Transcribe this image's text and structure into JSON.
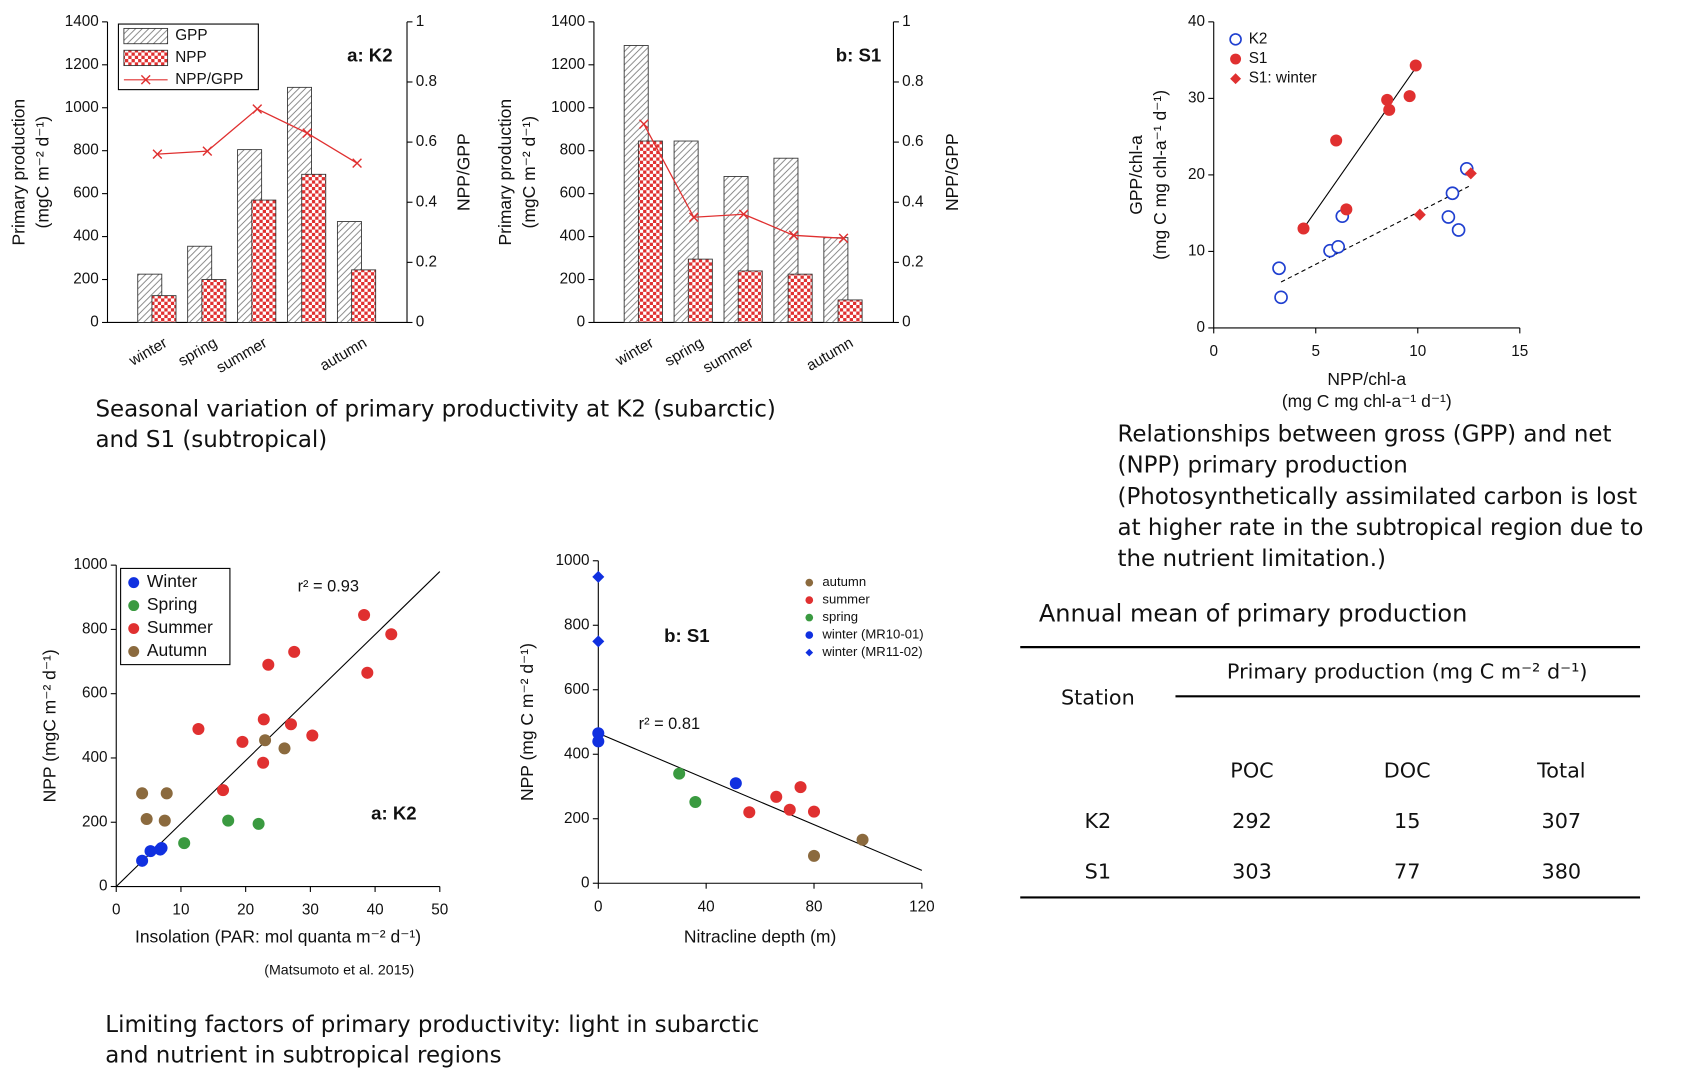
{
  "chart_data": [
    {
      "type": "bar",
      "categories": [
        "winter",
        "spring",
        "summer",
        null,
        "autumn"
      ],
      "series": [
        {
          "name": "GPP",
          "color": "#7a7a7a",
          "pattern": "hatch",
          "values": [
            225,
            355,
            805,
            1095,
            470
          ]
        },
        {
          "name": "NPP",
          "color": "#e03030",
          "pattern": "checker",
          "values": [
            125,
            200,
            570,
            690,
            245
          ]
        },
        {
          "name": "NPP/GPP",
          "color": "#e03030",
          "axis": "y2",
          "marker": "x",
          "values": [
            0.56,
            0.57,
            0.71,
            0.63,
            0.53
          ]
        }
      ],
      "ylabel": [
        "Primary production",
        "(mgC m⁻² d⁻¹)"
      ],
      "y2label": [
        "NPP/GPP"
      ],
      "ylim": [
        0,
        1400
      ],
      "yticks": [
        0,
        200,
        400,
        600,
        800,
        1000,
        1200,
        1400
      ],
      "y2lim": [
        0,
        1
      ],
      "y2ticks": [
        0,
        0.2,
        0.4,
        0.6,
        0.8,
        1
      ],
      "annotations": [
        "a: K2"
      ],
      "legend": "upper left"
    },
    {
      "type": "bar",
      "categories": [
        "winter",
        "spring",
        "summer",
        null,
        "autumn"
      ],
      "series": [
        {
          "name": "GPP",
          "color": "#7a7a7a",
          "pattern": "hatch",
          "values": [
            1290,
            845,
            680,
            765,
            395
          ]
        },
        {
          "name": "NPP",
          "color": "#e03030",
          "pattern": "checker",
          "values": [
            845,
            295,
            240,
            225,
            105
          ]
        },
        {
          "name": "NPP/GPP",
          "color": "#e03030",
          "axis": "y2",
          "marker": "x",
          "values": [
            0.66,
            0.35,
            0.36,
            0.29,
            0.28
          ]
        }
      ],
      "ylabel": [
        "Primary production",
        "(mgC m⁻² d⁻¹)"
      ],
      "y2label": [
        "NPP/GPP"
      ],
      "ylim": [
        0,
        1400
      ],
      "yticks": [
        0,
        200,
        400,
        600,
        800,
        1000,
        1200,
        1400
      ],
      "y2lim": [
        0,
        1
      ],
      "y2ticks": [
        0,
        0.2,
        0.4,
        0.6,
        0.8,
        1
      ],
      "annotations": [
        "b: S1"
      ],
      "legend": "none"
    },
    {
      "type": "scatter",
      "series": [
        {
          "name": "K2",
          "color": "#2040d0",
          "marker": "open-circle",
          "x": [
            3.2,
            3.3,
            5.7,
            6.1,
            6.3,
            11.5,
            11.7,
            12.0,
            12.4
          ],
          "values": [
            7.8,
            4.0,
            10.1,
            10.6,
            14.6,
            14.5,
            17.6,
            12.8,
            20.8
          ]
        },
        {
          "name": "S1",
          "color": "#e03030",
          "marker": "circle",
          "x": [
            4.4,
            6.0,
            6.5,
            8.5,
            8.6,
            9.6,
            9.9
          ],
          "values": [
            13.0,
            24.5,
            15.5,
            29.8,
            28.5,
            30.3,
            34.3
          ]
        },
        {
          "name": "S1: winter",
          "color": "#e03030",
          "marker": "diamond",
          "x": [
            10.1,
            12.6
          ],
          "values": [
            14.8,
            20.2
          ]
        }
      ],
      "trend_lines": [
        {
          "x": [
            4.4,
            9.9
          ],
          "y": [
            13.0,
            34.0
          ],
          "style": "solid"
        },
        {
          "x": [
            3.3,
            12.5
          ],
          "y": [
            6.0,
            18.5
          ],
          "style": "dashed"
        }
      ],
      "xlabel": [
        "NPP/chl-a",
        "(mg C mg chl-a⁻¹ d⁻¹)"
      ],
      "ylabel": [
        "GPP/chl-a",
        "(mg C mg chl-a⁻¹ d⁻¹)"
      ],
      "xlim": [
        0,
        15
      ],
      "xticks": [
        0,
        5,
        10,
        15
      ],
      "ylim": [
        0,
        40
      ],
      "yticks": [
        0,
        10,
        20,
        30,
        40
      ],
      "annotations": [],
      "legend": "upper left"
    },
    {
      "type": "scatter",
      "series": [
        {
          "name": "Winter",
          "color": "#1030e0",
          "marker": "circle",
          "x": [
            4.0,
            5.3,
            6.8,
            7.0
          ],
          "values": [
            80,
            110,
            115,
            120
          ]
        },
        {
          "name": "Spring",
          "color": "#3a9a40",
          "marker": "circle",
          "x": [
            10.5,
            17.3,
            22.0
          ],
          "values": [
            135,
            205,
            195
          ]
        },
        {
          "name": "Summer",
          "color": "#e03030",
          "marker": "circle",
          "x": [
            12.7,
            16.5,
            19.5,
            22.7,
            22.8,
            23.5,
            27.5,
            27.0,
            30.3,
            38.3,
            38.8,
            42.5
          ],
          "values": [
            490,
            300,
            450,
            385,
            520,
            690,
            730,
            505,
            470,
            845,
            665,
            785
          ]
        },
        {
          "name": "Autumn",
          "color": "#8b6a3e",
          "marker": "circle",
          "x": [
            4.0,
            4.7,
            7.5,
            7.8,
            23.0,
            26.0
          ],
          "values": [
            290,
            210,
            205,
            290,
            455,
            430
          ]
        }
      ],
      "trend_lines": [
        {
          "x": [
            0,
            50
          ],
          "y": [
            0,
            980
          ],
          "style": "solid"
        }
      ],
      "xlabel": [
        "Insolation (PAR: mol quanta m⁻² d⁻¹)"
      ],
      "ylabel": [
        "NPP (mgC m⁻² d⁻¹)"
      ],
      "xlim": [
        0,
        50
      ],
      "xticks": [
        0,
        10,
        20,
        30,
        40,
        50
      ],
      "ylim": [
        0,
        1000
      ],
      "yticks": [
        0,
        200,
        400,
        600,
        800,
        1000
      ],
      "annotations": [
        "r² = 0.93",
        "a: K2",
        "(Matsumoto et al. 2015)"
      ],
      "legend": "upper left"
    },
    {
      "type": "scatter",
      "series": [
        {
          "name": "autumn",
          "color": "#8b6a3e",
          "marker": "circle",
          "x": [
            80,
            98
          ],
          "values": [
            85,
            135
          ]
        },
        {
          "name": "summer",
          "color": "#e03030",
          "marker": "circle",
          "x": [
            56,
            66,
            71,
            75,
            80
          ],
          "values": [
            220,
            268,
            228,
            298,
            222
          ]
        },
        {
          "name": "spring",
          "color": "#3a9a40",
          "marker": "circle",
          "x": [
            30,
            36
          ],
          "values": [
            340,
            252
          ]
        },
        {
          "name": "winter (MR10-01)",
          "color": "#1030e0",
          "marker": "circle",
          "x": [
            0,
            0,
            51
          ],
          "values": [
            465,
            440,
            310
          ]
        },
        {
          "name": "winter (MR11-02)",
          "color": "#1030e0",
          "marker": "diamond",
          "x": [
            0,
            0
          ],
          "values": [
            950,
            750
          ]
        }
      ],
      "trend_lines": [
        {
          "x": [
            0,
            120
          ],
          "y": [
            465,
            40
          ],
          "style": "solid"
        }
      ],
      "xlabel": [
        "Nitracline depth (m)"
      ],
      "ylabel": [
        "NPP (mg C m⁻² d⁻¹)"
      ],
      "xlim": [
        0,
        120
      ],
      "xticks": [
        0,
        40,
        80,
        120
      ],
      "ylim": [
        0,
        1000
      ],
      "yticks": [
        0,
        200,
        400,
        600,
        800,
        1000
      ],
      "annotations": [
        "b: S1",
        "r² = 0.81"
      ],
      "legend": "upper right"
    }
  ],
  "captions": [
    [
      "Seasonal variation of primary productivity at K2 (subarctic)",
      "and S1 (subtropical)"
    ],
    [
      "Relationships between gross (GPP) and net",
      "(NPP) primary production",
      "(Photosynthetically assimilated carbon is lost",
      "at higher rate in the subtropical region due to",
      "the nutrient limitation.)"
    ],
    [
      "Limiting factors of primary productivity: light in subarctic",
      "and nutrient in subtropical regions"
    ]
  ],
  "table": {
    "title": "Annual mean of primary production",
    "station_header": "Station",
    "group_header": "Primary production (mg C m⁻² d⁻¹)",
    "columns": [
      "POC",
      "DOC",
      "Total"
    ],
    "rows": [
      [
        "K2",
        292,
        15,
        307
      ],
      [
        "S1",
        303,
        77,
        380
      ]
    ]
  }
}
